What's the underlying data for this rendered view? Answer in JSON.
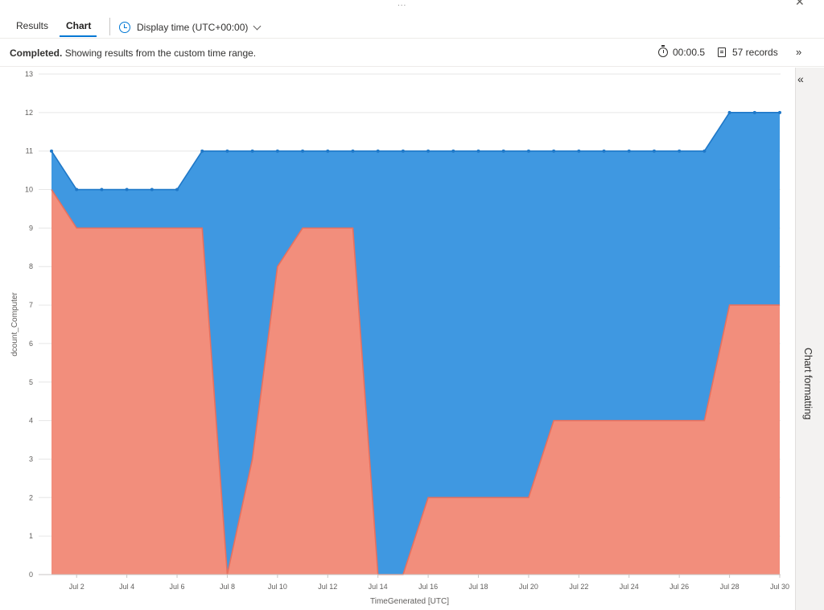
{
  "header": {
    "grip": "...",
    "close_icon": "close-icon",
    "tabs": [
      {
        "label": "Results"
      },
      {
        "label": "Chart"
      }
    ],
    "display_time": "Display time (UTC+00:00)"
  },
  "status": {
    "completed": "Completed.",
    "message": "Showing results from the custom time range.",
    "duration": "00:00.5",
    "records": "57 records"
  },
  "side_panel": {
    "label": "Chart formatting"
  },
  "colors": {
    "blue_series": "#3f98e1",
    "blue_line": "#1f78c8",
    "red_series": "#f28e7c",
    "red_line": "#e7705e"
  },
  "chart_data": {
    "type": "area",
    "stacked": false,
    "xlabel": "TimeGenerated [UTC]",
    "ylabel": "dcount_Computer",
    "ylim": [
      0,
      13
    ],
    "yticks": [
      0,
      1,
      2,
      3,
      4,
      5,
      6,
      7,
      8,
      9,
      10,
      11,
      12,
      13
    ],
    "x": [
      "Jul 1",
      "Jul 2",
      "Jul 3",
      "Jul 4",
      "Jul 5",
      "Jul 6",
      "Jul 7",
      "Jul 8",
      "Jul 9",
      "Jul 10",
      "Jul 11",
      "Jul 12",
      "Jul 13",
      "Jul 14",
      "Jul 15",
      "Jul 16",
      "Jul 17",
      "Jul 18",
      "Jul 19",
      "Jul 20",
      "Jul 21",
      "Jul 22",
      "Jul 23",
      "Jul 24",
      "Jul 25",
      "Jul 26",
      "Jul 27",
      "Jul 28",
      "Jul 29",
      "Jul 30"
    ],
    "xtick_labels": [
      "Jul 2",
      "Jul 4",
      "Jul 6",
      "Jul 8",
      "Jul 10",
      "Jul 12",
      "Jul 14",
      "Jul 16",
      "Jul 18",
      "Jul 20",
      "Jul 22",
      "Jul 24",
      "Jul 26",
      "Jul 28",
      "Jul 30"
    ],
    "series": [
      {
        "values": [
          11,
          10,
          10,
          10,
          10,
          10,
          11,
          11,
          11,
          11,
          11,
          11,
          11,
          11,
          11,
          11,
          11,
          11,
          11,
          11,
          11,
          11,
          11,
          11,
          11,
          11,
          11,
          12,
          12,
          12
        ]
      },
      {
        "values": [
          10,
          9,
          9,
          9,
          9,
          9,
          9,
          0,
          3,
          8,
          9,
          9,
          9,
          0,
          0,
          2,
          2,
          2,
          2,
          2,
          4,
          4,
          4,
          4,
          4,
          4,
          4,
          7,
          7,
          7
        ]
      }
    ],
    "grid": true
  }
}
